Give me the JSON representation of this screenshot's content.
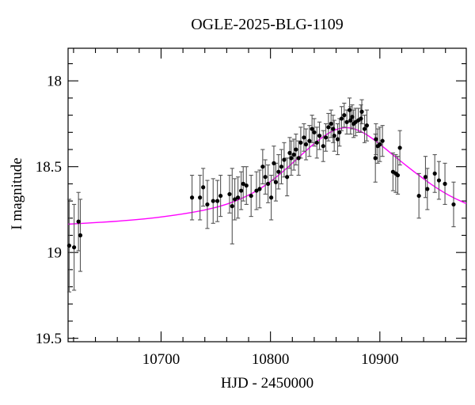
{
  "chart_data": {
    "type": "scatter",
    "title": "OGLE-2025-BLG-1109",
    "xlabel": "HJD - 2450000",
    "ylabel": "I magnitude",
    "grid": false,
    "legend": null,
    "x_axis": {
      "lim": [
        10615,
        10979
      ],
      "major_ticks": [
        10700,
        10800,
        10900
      ],
      "major_tick_labels": [
        "10700",
        "10800",
        "10900"
      ],
      "minor_tick_step": 20,
      "minor_tick_range": [
        10620,
        10960
      ]
    },
    "y_axis": {
      "lim": [
        17.81,
        19.52
      ],
      "inverted": true,
      "major_ticks": [
        18,
        18.5,
        19,
        19.5
      ],
      "major_tick_labels": [
        "18",
        "18.5",
        "19",
        "19.5"
      ],
      "minor_tick_step": 0.1,
      "minor_tick_range": [
        17.9,
        19.5
      ]
    },
    "colors": {
      "model_curve": "#ff00ff",
      "data_points": "#000000",
      "error_bars": "#555555",
      "frame": "#000000",
      "text": "#000000",
      "background": "#ffffff"
    },
    "series": [
      {
        "name": "OGLE I-band photometry",
        "type": "scatter_with_errorbars",
        "points": [
          [
            10616.0,
            18.96,
            0.27
          ],
          [
            10620.5,
            18.97,
            0.25
          ],
          [
            10624.5,
            18.82,
            0.17
          ],
          [
            10626.2,
            18.9,
            0.21
          ],
          [
            10728.3,
            18.68,
            0.13
          ],
          [
            10735.6,
            18.68,
            0.13
          ],
          [
            10738.5,
            18.62,
            0.11
          ],
          [
            10742.3,
            18.72,
            0.14
          ],
          [
            10747.6,
            18.7,
            0.13
          ],
          [
            10751.5,
            18.7,
            0.12
          ],
          [
            10754.4,
            18.67,
            0.12
          ],
          [
            10762.6,
            18.66,
            0.11
          ],
          [
            10765.0,
            18.73,
            0.22
          ],
          [
            10767.4,
            18.69,
            0.12
          ],
          [
            10770.3,
            18.68,
            0.12
          ],
          [
            10773.2,
            18.64,
            0.11
          ],
          [
            10775.1,
            18.6,
            0.1
          ],
          [
            10778.0,
            18.61,
            0.11
          ],
          [
            10782.3,
            18.67,
            0.12
          ],
          [
            10787.2,
            18.64,
            0.11
          ],
          [
            10790.1,
            18.63,
            0.11
          ],
          [
            10792.9,
            18.5,
            0.1
          ],
          [
            10795.3,
            18.56,
            0.1
          ],
          [
            10797.8,
            18.6,
            0.11
          ],
          [
            10800.7,
            18.68,
            0.13
          ],
          [
            10803.1,
            18.48,
            0.1
          ],
          [
            10804.9,
            18.59,
            0.11
          ],
          [
            10807.4,
            18.53,
            0.1
          ],
          [
            10810.0,
            18.5,
            0.1
          ],
          [
            10812.5,
            18.46,
            0.1
          ],
          [
            10815.2,
            18.56,
            0.11
          ],
          [
            10817.6,
            18.42,
            0.09
          ],
          [
            10819.0,
            18.45,
            0.1
          ],
          [
            10821.4,
            18.43,
            0.09
          ],
          [
            10823.3,
            18.4,
            0.09
          ],
          [
            10825.7,
            18.45,
            0.1
          ],
          [
            10827.7,
            18.36,
            0.09
          ],
          [
            10830.6,
            18.33,
            0.08
          ],
          [
            10832.5,
            18.37,
            0.09
          ],
          [
            10835.6,
            18.35,
            0.09
          ],
          [
            10838.0,
            18.28,
            0.08
          ],
          [
            10840.0,
            18.3,
            0.08
          ],
          [
            10842.4,
            18.36,
            0.09
          ],
          [
            10844.8,
            18.32,
            0.08
          ],
          [
            10848.2,
            18.38,
            0.09
          ],
          [
            10850.6,
            18.33,
            0.08
          ],
          [
            10853.0,
            18.27,
            0.08
          ],
          [
            10855.4,
            18.25,
            0.08
          ],
          [
            10857.3,
            18.28,
            0.08
          ],
          [
            10858.3,
            18.32,
            0.09
          ],
          [
            10861.4,
            18.34,
            0.09
          ],
          [
            10863.1,
            18.3,
            0.08
          ],
          [
            10865.0,
            18.22,
            0.07
          ],
          [
            10867.4,
            18.2,
            0.07
          ],
          [
            10869.8,
            18.24,
            0.07
          ],
          [
            10872.3,
            18.17,
            0.07
          ],
          [
            10873.2,
            18.23,
            0.08
          ],
          [
            10874.7,
            18.21,
            0.07
          ],
          [
            10876.0,
            18.25,
            0.08
          ],
          [
            10877.8,
            18.24,
            0.08
          ],
          [
            10880.3,
            18.23,
            0.07
          ],
          [
            10882.7,
            18.22,
            0.08
          ],
          [
            10883.5,
            18.18,
            0.07
          ],
          [
            10886.0,
            18.28,
            0.08
          ],
          [
            10888.1,
            18.26,
            0.09
          ],
          [
            10895.9,
            18.45,
            0.14
          ],
          [
            10896.4,
            18.34,
            0.09
          ],
          [
            10898.1,
            18.38,
            0.1
          ],
          [
            10900.0,
            18.37,
            0.1
          ],
          [
            10902.4,
            18.35,
            0.09
          ],
          [
            10912.0,
            18.53,
            0.11
          ],
          [
            10914.5,
            18.54,
            0.11
          ],
          [
            10916.4,
            18.55,
            0.11
          ],
          [
            10918.3,
            18.39,
            0.1
          ],
          [
            10935.7,
            18.67,
            0.13
          ],
          [
            10941.7,
            18.56,
            0.12
          ],
          [
            10943.4,
            18.63,
            0.12
          ],
          [
            10950.2,
            18.54,
            0.11
          ],
          [
            10954.0,
            18.58,
            0.11
          ],
          [
            10959.5,
            18.6,
            0.12
          ],
          [
            10967.4,
            18.72,
            0.13
          ]
        ]
      },
      {
        "name": "Microlensing model fit",
        "type": "smooth_line",
        "points": [
          [
            10615,
            18.835
          ],
          [
            10635,
            18.828
          ],
          [
            10655,
            18.82
          ],
          [
            10675,
            18.81
          ],
          [
            10695,
            18.797
          ],
          [
            10712,
            18.783
          ],
          [
            10727,
            18.768
          ],
          [
            10740,
            18.752
          ],
          [
            10753,
            18.732
          ],
          [
            10766,
            18.705
          ],
          [
            10778,
            18.672
          ],
          [
            10790,
            18.63
          ],
          [
            10801,
            18.582
          ],
          [
            10812,
            18.525
          ],
          [
            10822,
            18.468
          ],
          [
            10832,
            18.41
          ],
          [
            10841,
            18.36
          ],
          [
            10849,
            18.322
          ],
          [
            10856,
            18.295
          ],
          [
            10862,
            18.28
          ],
          [
            10868,
            18.273
          ],
          [
            10874,
            18.276
          ],
          [
            10880,
            18.288
          ],
          [
            10887,
            18.31
          ],
          [
            10895,
            18.345
          ],
          [
            10904,
            18.39
          ],
          [
            10914,
            18.442
          ],
          [
            10925,
            18.498
          ],
          [
            10936,
            18.552
          ],
          [
            10947,
            18.603
          ],
          [
            10958,
            18.648
          ],
          [
            10968,
            18.683
          ],
          [
            10979,
            18.715
          ]
        ]
      }
    ]
  }
}
